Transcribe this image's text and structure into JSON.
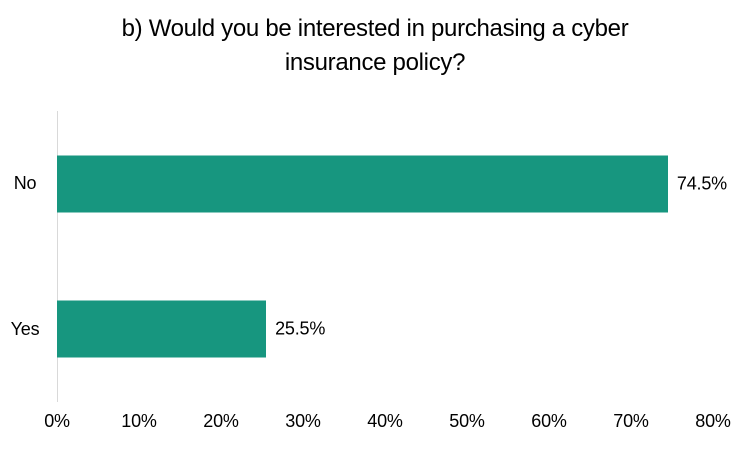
{
  "chart": {
    "title": "b) Would you be interested in purchasing a cyber insurance policy?",
    "title_lines": [
      "b) Would you be interested in purchasing a cyber",
      "insurance policy?"
    ]
  },
  "chart_data": {
    "type": "bar",
    "orientation": "horizontal",
    "title": "b) Would you be interested in purchasing a cyber insurance policy?",
    "categories": [
      "No",
      "Yes"
    ],
    "values": [
      74.5,
      25.5
    ],
    "value_labels": [
      "74.5%",
      "25.5%"
    ],
    "xlabel": "",
    "ylabel": "",
    "xlim": [
      0,
      80
    ],
    "x_ticks": [
      "0%",
      "10%",
      "20%",
      "30%",
      "40%",
      "50%",
      "60%",
      "70%",
      "80%"
    ],
    "grid": false,
    "legend": "none",
    "bar_color": "#17967F",
    "axis_line_color": "#D9D9D9",
    "text_color": "#000000"
  }
}
